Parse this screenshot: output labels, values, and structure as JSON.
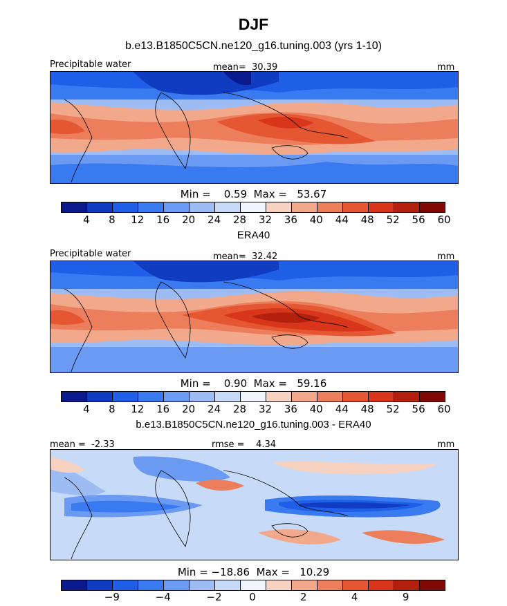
{
  "figure": {
    "season": "DJF",
    "model_title": "b.e13.B1850C5CN.ne120_g16.tuning.003 (yrs 1-10)",
    "obs_title": "ERA40",
    "diff_title": "b.e13.B1850C5CN.ne120_g16.tuning.003 - ERA40"
  },
  "panels": [
    {
      "variable": "Precipitable water",
      "mean_text": "mean=  30.39",
      "units": "mm",
      "minmax_text": "Min =    0.59  Max =   53.67",
      "colorbar_labels": [
        "4",
        "8",
        "12",
        "16",
        "20",
        "24",
        "28",
        "32",
        "36",
        "40",
        "44",
        "48",
        "52",
        "56",
        "60"
      ]
    },
    {
      "variable": "Precipitable water",
      "mean_text": "mean=  32.42",
      "units": "mm",
      "minmax_text": "Min =    0.90  Max =   59.16",
      "colorbar_labels": [
        "4",
        "8",
        "12",
        "16",
        "20",
        "24",
        "28",
        "32",
        "36",
        "40",
        "44",
        "48",
        "52",
        "56",
        "60"
      ]
    },
    {
      "mean_text": "mean =  -2.33",
      "rmse_text": "rmse =    4.34",
      "units": "mm",
      "minmax_text": "Min = −18.86  Max =   10.29",
      "colorbar_labels": [
        "−9",
        "−4",
        "−2",
        "0",
        "2",
        "4",
        "9"
      ]
    }
  ],
  "colors": {
    "abs_scale": [
      "#0a1a8c",
      "#0f3cc0",
      "#1f5ee6",
      "#3a7af0",
      "#6a9af2",
      "#9dbcf4",
      "#c7daf7",
      "#f0f4fb",
      "#f8d2c0",
      "#f2a88a",
      "#ec7e5c",
      "#e55632",
      "#d8351a",
      "#b3200e",
      "#7f0a05"
    ],
    "diff_scale": [
      "#0a1a8c",
      "#0f3cc0",
      "#1f5ee6",
      "#3a7af0",
      "#6a9af2",
      "#9dbcf4",
      "#c7daf7",
      "#f0f4fb",
      "#f8d2c0",
      "#f2a88a",
      "#ec7e5c",
      "#e55632",
      "#d8351a",
      "#b3200e",
      "#7f0a05"
    ]
  }
}
